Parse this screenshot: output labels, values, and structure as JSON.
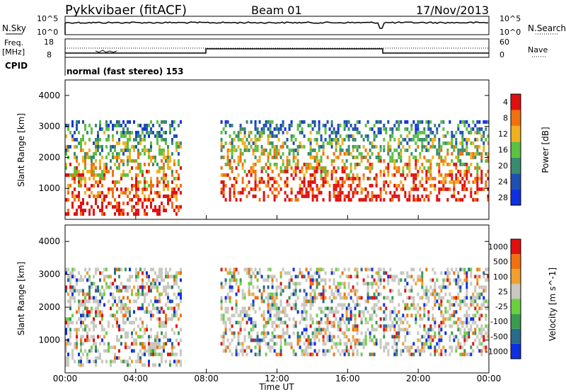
{
  "header": {
    "station": "Pykkvibaer (fitACF)",
    "beam": "Beam 01",
    "date": "17/Nov/2013"
  },
  "sky_panel": {
    "left_label": "N.Sky",
    "right_label": "N.Search",
    "ticks_left": [
      "10^5",
      "10^0"
    ],
    "ticks_right": [
      "10^5",
      "10^0"
    ]
  },
  "freq_panel": {
    "left_label_line1": "Freq.",
    "left_label_line2": "[MHz]",
    "ticks_left": [
      "18",
      "8"
    ],
    "ticks_right": [
      "60",
      "0"
    ],
    "right_label": "Nave"
  },
  "cpid": {
    "label": "CPID",
    "text": "normal (fast stereo) 153"
  },
  "x_axis": {
    "label": "Time UT",
    "ticks": [
      "00:00",
      "04:00",
      "08:00",
      "12:00",
      "16:00",
      "20:00",
      "00:00"
    ]
  },
  "chart_data": [
    {
      "type": "heatmap",
      "panel": "power",
      "ylabel": "Slant Range [km]",
      "yticks": [
        "1000",
        "2000",
        "3000",
        "4000"
      ],
      "ylim": [
        0,
        4500
      ],
      "xlim_hours": [
        0,
        24
      ],
      "colorbar": {
        "label": "Power [dB]",
        "tick_labels": [
          "4",
          "8",
          "12",
          "16",
          "20",
          "24",
          "28"
        ],
        "colors": [
          "#1030e0",
          "#2050b0",
          "#3a8a70",
          "#5cc040",
          "#f0b020",
          "#f07010",
          "#e01010"
        ]
      },
      "regions": [
        {
          "t": [
            0.0,
            6.5
          ],
          "r": [
            200,
            3200
          ],
          "level": "mixed"
        },
        {
          "t": [
            8.8,
            17.9
          ],
          "r": [
            600,
            3200
          ],
          "level": "mixed"
        },
        {
          "t": [
            18.0,
            24.0
          ],
          "r": [
            600,
            3200
          ],
          "level": "mixed"
        }
      ]
    },
    {
      "type": "heatmap",
      "panel": "velocity",
      "ylabel": "Slant Range [km]",
      "yticks": [
        "1000",
        "2000",
        "3000",
        "4000"
      ],
      "ylim": [
        0,
        4500
      ],
      "xlim_hours": [
        0,
        24
      ],
      "colorbar": {
        "label": "Velocity [m s^-1]",
        "tick_labels": [
          "1000",
          "500",
          "100",
          "25",
          "-25",
          "-100",
          "-500",
          "-1000"
        ],
        "colors": [
          "#1030e0",
          "#2a6a8a",
          "#3a9a50",
          "#6ad040",
          "#c8c8c0",
          "#f0a030",
          "#f07010",
          "#e01010"
        ]
      },
      "regions": [
        {
          "t": [
            0.0,
            6.5
          ],
          "r": [
            200,
            3200
          ],
          "level": "mixed"
        },
        {
          "t": [
            8.8,
            17.9
          ],
          "r": [
            600,
            3200
          ],
          "level": "mixed"
        },
        {
          "t": [
            18.0,
            24.0
          ],
          "r": [
            600,
            3200
          ],
          "level": "mixed"
        }
      ]
    }
  ],
  "colors": {
    "axis": "#000000",
    "ground_scatter": "#c8c8c0"
  }
}
